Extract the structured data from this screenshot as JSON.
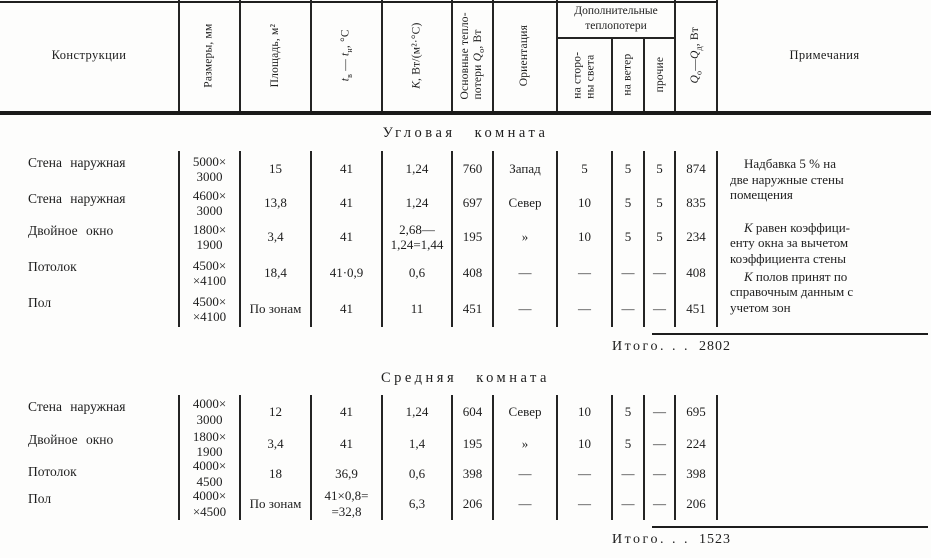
{
  "table": {
    "header": {
      "construction": "Конструкции",
      "dimensions": "Размеры, мм",
      "area": "Площадь, м²",
      "dt": {
        "sym1": "t",
        "sub1": "в",
        "dash": " — ",
        "sym2": "t",
        "sub2": "н",
        "tail": ", °С"
      },
      "k": {
        "sym": "К",
        "tail": ", Вт/(м²·°С)"
      },
      "q0": {
        "line1": "Основные тепло-",
        "line2": "потери ",
        "sym": "Q",
        "sub": "о",
        "tail": ", Вт"
      },
      "orientation": "Ориентация",
      "additional_group": {
        "line1": "Дополнительные",
        "line2": "теплопотери"
      },
      "add_sides": "на сторо-\nны света",
      "add_wind": "на ветер",
      "add_other": "прочие",
      "qsum": {
        "sym1": "Q",
        "sub1": "о",
        "dash": "—",
        "sym2": "Q",
        "sub2": "д",
        "tail": ", Вт"
      },
      "notes": "Примечания"
    },
    "sections": [
      {
        "title": "Угловая комната",
        "rows": [
          {
            "construction": "Стена наружная",
            "dimensions": "5000×\n3000",
            "area": "15",
            "dt": "41",
            "k": "1,24",
            "q0": "760",
            "orientation": "Запад",
            "add_sides": "5",
            "add_wind": "5",
            "add_other": "5",
            "qsum": "874"
          },
          {
            "construction": "Стена наружная",
            "dimensions": "4600×\n3000",
            "area": "13,8",
            "dt": "41",
            "k": "1,24",
            "q0": "697",
            "orientation": "Север",
            "add_sides": "10",
            "add_wind": "5",
            "add_other": "5",
            "qsum": "835"
          },
          {
            "construction": "Двойное окно",
            "dimensions": "1800×\n1900",
            "area": "3,4",
            "dt": "41",
            "k": "2,68—\n1,24=1,44",
            "q0": "195",
            "orientation": "»",
            "add_sides": "10",
            "add_wind": "5",
            "add_other": "5",
            "qsum": "234"
          },
          {
            "construction": "Потолок",
            "dimensions": "4500×\n×4100",
            "area": "18,4",
            "dt": "41·0,9",
            "k": "0,6",
            "q0": "408",
            "orientation": "—",
            "add_sides": "—",
            "add_wind": "—",
            "add_other": "—",
            "qsum": "408"
          },
          {
            "construction": "Пол",
            "dimensions": "4500×\n×4100",
            "area": "По зонам",
            "dt": "41",
            "k": "11",
            "q0": "451",
            "orientation": "—",
            "add_sides": "—",
            "add_wind": "—",
            "add_other": "—",
            "qsum": "451"
          }
        ],
        "notes": [
          {
            "lead": "",
            "text": "Надбавка 5 % на\nдве наружные стены\nпомещения"
          },
          {
            "lead": "К",
            "text": " равен коэффици-\nенту окна за вычетом\nкоэффициента стены"
          },
          {
            "lead": "К",
            "text": " полов принят по\nсправочным данным с\nучетом зон"
          }
        ],
        "total_label": "Итого. . .",
        "total_value": "2802"
      },
      {
        "title": "Средняя комната",
        "rows": [
          {
            "construction": "Стена наружная",
            "dimensions": "4000×\n3000",
            "area": "12",
            "dt": "41",
            "k": "1,24",
            "q0": "604",
            "orientation": "Север",
            "add_sides": "10",
            "add_wind": "5",
            "add_other": "—",
            "qsum": "695"
          },
          {
            "construction": "Двойное окно",
            "dimensions": "1800×\n1900",
            "area": "3,4",
            "dt": "41",
            "k": "1,4",
            "q0": "195",
            "orientation": "»",
            "add_sides": "10",
            "add_wind": "5",
            "add_other": "—",
            "qsum": "224"
          },
          {
            "construction": "Потолок",
            "dimensions": "4000×\n4500",
            "area": "18",
            "dt": "36,9",
            "k": "0,6",
            "q0": "398",
            "orientation": "—",
            "add_sides": "—",
            "add_wind": "—",
            "add_other": "—",
            "qsum": "398"
          },
          {
            "construction": "Пол",
            "dimensions": "4000×\n×4500",
            "area": "По зонам",
            "dt": "41×0,8=\n=32,8",
            "k": "6,3",
            "q0": "206",
            "orientation": "—",
            "add_sides": "—",
            "add_wind": "—",
            "add_other": "—",
            "qsum": "206"
          }
        ],
        "notes": [],
        "total_label": "Итого. . .",
        "total_value": "1523"
      }
    ]
  }
}
